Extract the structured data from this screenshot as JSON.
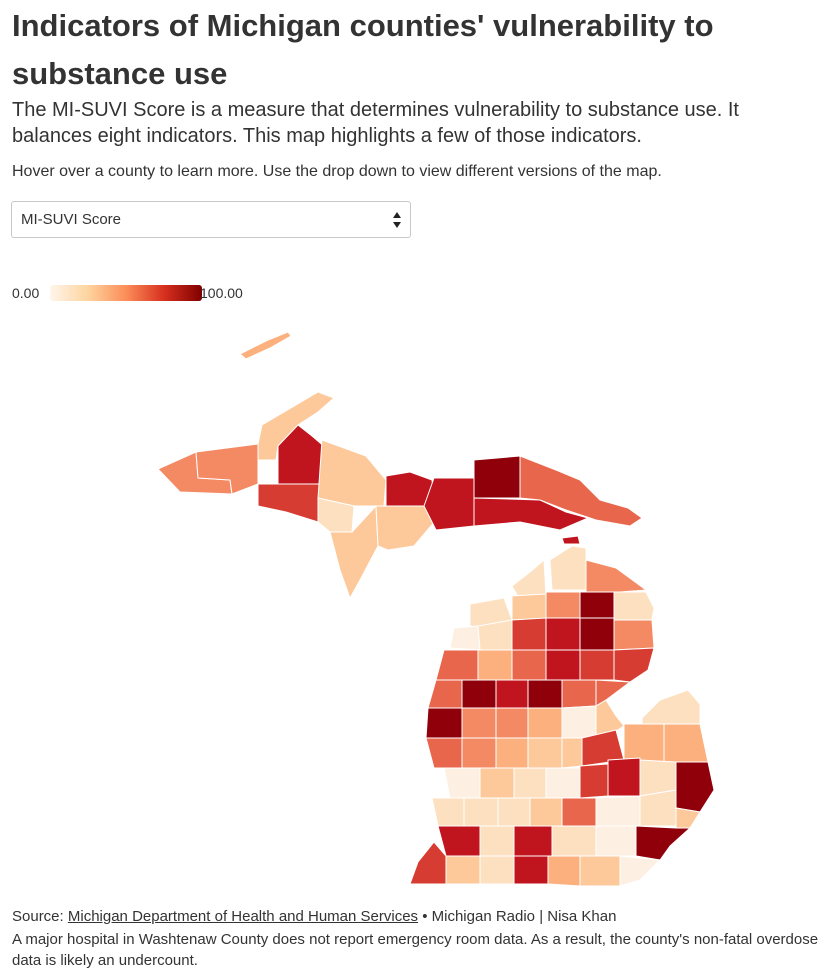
{
  "title": "Indicators of Michigan counties' vulnerability to substance use",
  "subtitle": "The MI-SUVI Score is a measure that determines vulnerability to substance use. It balances eight indicators. This map highlights a few of those indicators.",
  "instructions": "Hover over a county to learn more. Use the drop down to view different versions of the map.",
  "dropdown": {
    "selected": "MI-SUVI Score"
  },
  "legend": {
    "min_label": "0.00",
    "max_label": "100.00",
    "colors": [
      "#fff5eb",
      "#fdd49e",
      "#fc8d59",
      "#d7301f",
      "#7f0000"
    ]
  },
  "colors": {
    "c1": "#fdf0e2",
    "c2": "#fde0c0",
    "c3": "#fdc99a",
    "c4": "#fcb07e",
    "c5": "#f48a64",
    "c6": "#e8664c",
    "c7": "#d63c31",
    "c8": "#c0141e",
    "c9": "#8f000a"
  },
  "footer": {
    "source_prefix": "Source: ",
    "source_link": "Michigan Department of Health and Human Services",
    "source_suffix": " • Michigan Radio | Nisa Khan",
    "note": "A major hospital in Washtenaw County does not report emergency room data. As a result, the county's non-fatal overdose data is likely an undercount."
  }
}
